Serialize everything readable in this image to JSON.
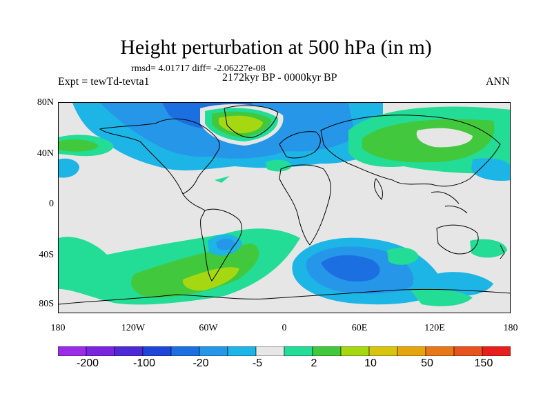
{
  "title": "Height perturbation at 500 hPa (in m)",
  "stats": "rmsd= 4.01717 diff= -2.06227e-08",
  "expt": "Expt = tewTd-tevta1",
  "period": "2172kyr BP - 0000kyr BP",
  "season": "ANN",
  "lat_labels": [
    "80N",
    "40N",
    "0",
    "40S",
    "80S"
  ],
  "lon_labels": [
    "180",
    "120W",
    "60W",
    "0",
    "60E",
    "120E",
    "180"
  ],
  "colorbar": {
    "colors": [
      "#9a2be6",
      "#7a24e0",
      "#4d2ad6",
      "#1f45d9",
      "#1c6fe0",
      "#2596e8",
      "#1db5e6",
      "#e6e6e6",
      "#23dc96",
      "#41c83c",
      "#a6d812",
      "#d6c40f",
      "#e6a50f",
      "#e6781a",
      "#e6531f",
      "#e61e1e"
    ],
    "labels": [
      "-200",
      "-100",
      "-20",
      "-5",
      "2",
      "10",
      "50",
      "150"
    ]
  },
  "legend_colors": {
    "neg_strong": "#1f45d9",
    "neg_mid": "#2596e8",
    "neg_weak": "#1db5e6",
    "neutral": "#e6e6e6",
    "pos_weak": "#23dc96",
    "pos_mid": "#41c83c",
    "pos_strong": "#a6d812"
  }
}
